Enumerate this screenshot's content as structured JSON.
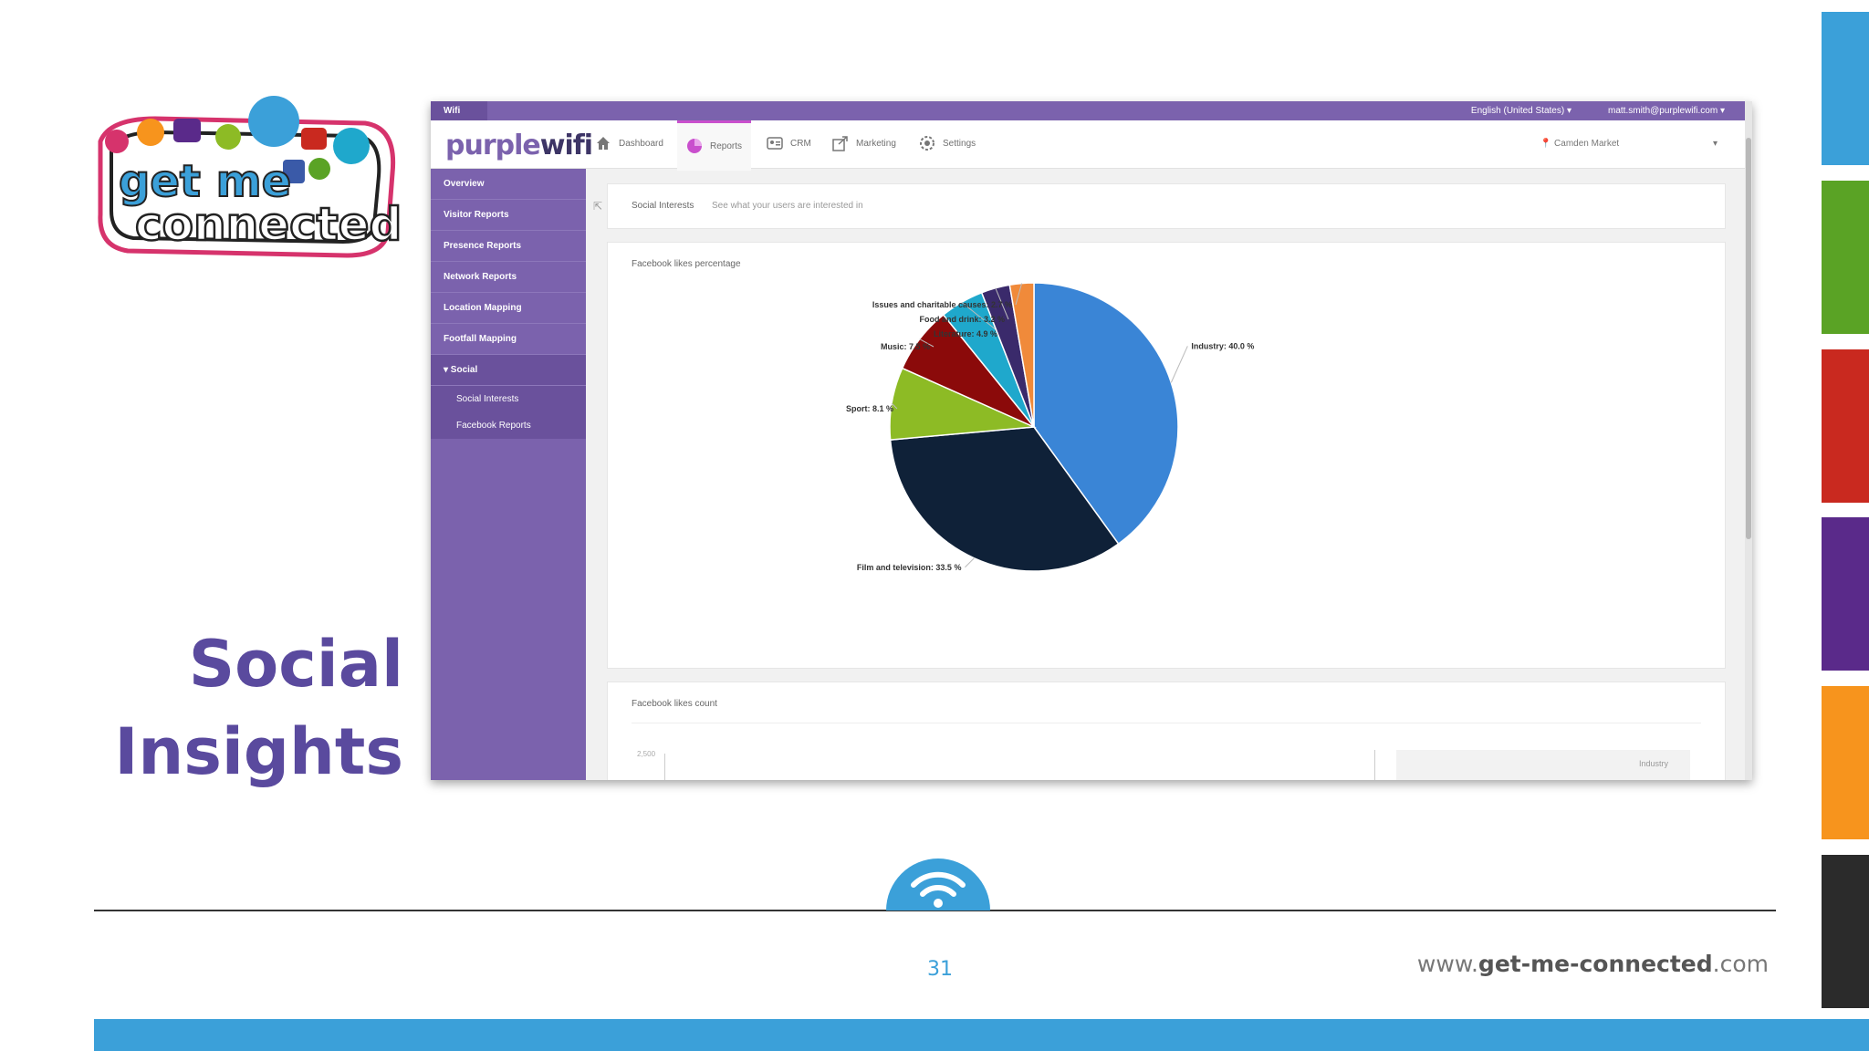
{
  "slide": {
    "title_line1": "Social",
    "title_line2": "Insights",
    "page_number": "31",
    "website_prefix": "www.",
    "website_domain": "get-me-connected",
    "website_suffix": ".com",
    "stripe_colors": [
      "#3ba0d9",
      "#5aa325",
      "#c9291f",
      "#5a2a8a",
      "#f7941d",
      "#2b2b2b"
    ],
    "logo_text_1": "get me",
    "logo_text_2": "connected"
  },
  "app": {
    "topbar": {
      "brand": "Wifi",
      "language": "English (United States) ▾",
      "user": "matt.smith@purplewifi.com ▾"
    },
    "logo": {
      "part1": "purple",
      "part2": "wifi"
    },
    "nav": [
      {
        "label": "Dashboard",
        "icon": "home-icon"
      },
      {
        "label": "Reports",
        "icon": "pie-chart-icon",
        "active": true
      },
      {
        "label": "CRM",
        "icon": "id-card-icon"
      },
      {
        "label": "Marketing",
        "icon": "share-icon"
      },
      {
        "label": "Settings",
        "icon": "gear-icon"
      }
    ],
    "location": "Camden Market",
    "sidebar": [
      "Overview",
      "Visitor Reports",
      "Presence Reports",
      "Network Reports",
      "Location Mapping",
      "Footfall Mapping",
      "▾ Social"
    ],
    "sidebar_sub": [
      "Social Interests",
      "Facebook Reports"
    ],
    "header_panel": {
      "title": "Social Interests",
      "description": "See what your users are interested in"
    },
    "chart_panel": {
      "title": "Facebook likes percentage"
    },
    "count_panel": {
      "title": "Facebook likes count",
      "axis_top": "2,500",
      "legend": "Industry"
    }
  },
  "chart_data": {
    "type": "pie",
    "title": "Facebook likes percentage",
    "slices": [
      {
        "name": "Industry",
        "label": "Industry: 40.0 %",
        "value": 40.0,
        "color": "#3a85d6"
      },
      {
        "name": "Film and television",
        "label": "Film and television: 33.5 %",
        "value": 33.5,
        "color": "#0f2138"
      },
      {
        "name": "Sport",
        "label": "Sport: 8.1 %",
        "value": 8.1,
        "color": "#8dbb25"
      },
      {
        "name": "Music",
        "label": "Music: 7.5 %",
        "value": 7.5,
        "color": "#8b0a0a"
      },
      {
        "name": "Literature",
        "label": "Literature: 4.9 %",
        "value": 4.9,
        "color": "#1fa8cc"
      },
      {
        "name": "Food and drink",
        "label": "Food and drink: 3.2 %",
        "value": 3.2,
        "color": "#3a2a6b"
      },
      {
        "name": "Issues and charitable causes",
        "label": "Issues and charitable causes: 2.7 %",
        "value": 2.7,
        "color": "#f08a3a"
      }
    ]
  }
}
